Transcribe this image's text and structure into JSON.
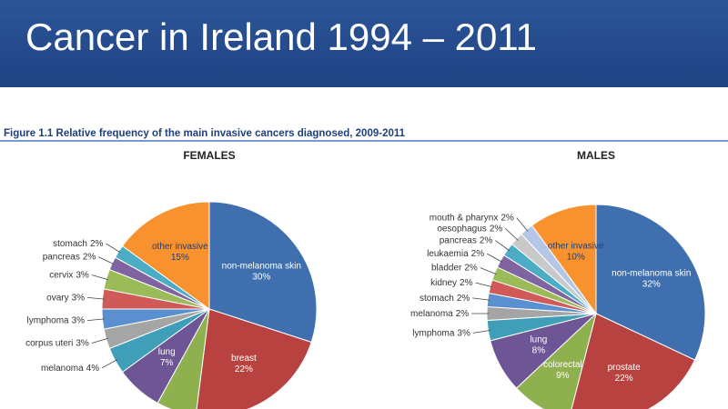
{
  "header": {
    "title": "Cancer in Ireland 1994 – 2011"
  },
  "figure_caption": "Figure 1.1 Relative frequency of the main invasive cancers diagnosed, 2009-2011",
  "chart_data": [
    {
      "type": "pie",
      "title": "FEMALES",
      "categories": [
        "non-melanoma skin",
        "breast",
        null,
        "lung",
        "melanoma",
        "corpus uteri",
        "lymphoma",
        "ovary",
        "cervix",
        "pancreas",
        "stomach",
        "other invasive"
      ],
      "values": [
        30,
        22,
        6,
        7,
        4,
        3,
        3,
        3,
        3,
        2,
        2,
        15
      ],
      "value_labels": [
        "30%",
        "22%",
        null,
        "7%",
        "4%",
        "3%",
        "3%",
        "3%",
        "3%",
        "2%",
        "2%",
        "15%"
      ],
      "colors": [
        "#3f6fae",
        "#b8423f",
        "#8fb04f",
        "#6e5596",
        "#3f9fb8",
        "#a5a5a5",
        "#5a8fd0",
        "#d05a57",
        "#9bbb59",
        "#8064a2",
        "#4bacc6",
        "#f7922f"
      ]
    },
    {
      "type": "pie",
      "title": "MALES",
      "categories": [
        "non-melanoma skin",
        "prostate",
        "colorectal",
        "lung",
        "lymphoma",
        "melanoma",
        "stomach",
        "kidney",
        "bladder",
        "leukaemia",
        "pancreas",
        "oesophagus",
        "mouth & pharynx",
        "other invasive"
      ],
      "values": [
        32,
        22,
        9,
        8,
        3,
        2,
        2,
        2,
        2,
        2,
        2,
        2,
        2,
        10
      ],
      "value_labels": [
        "32%",
        "22%",
        "9%",
        "8%",
        "3%",
        "2%",
        "2%",
        "2%",
        "2%",
        "2%",
        "2%",
        "2%",
        "2%",
        "10%"
      ],
      "colors": [
        "#3f6fae",
        "#b8423f",
        "#8fb04f",
        "#6e5596",
        "#3f9fb8",
        "#a5a5a5",
        "#5a8fd0",
        "#d05a57",
        "#9bbb59",
        "#8064a2",
        "#4bacc6",
        "#c9c9c9",
        "#b4c7e7",
        "#f7922f"
      ]
    }
  ]
}
